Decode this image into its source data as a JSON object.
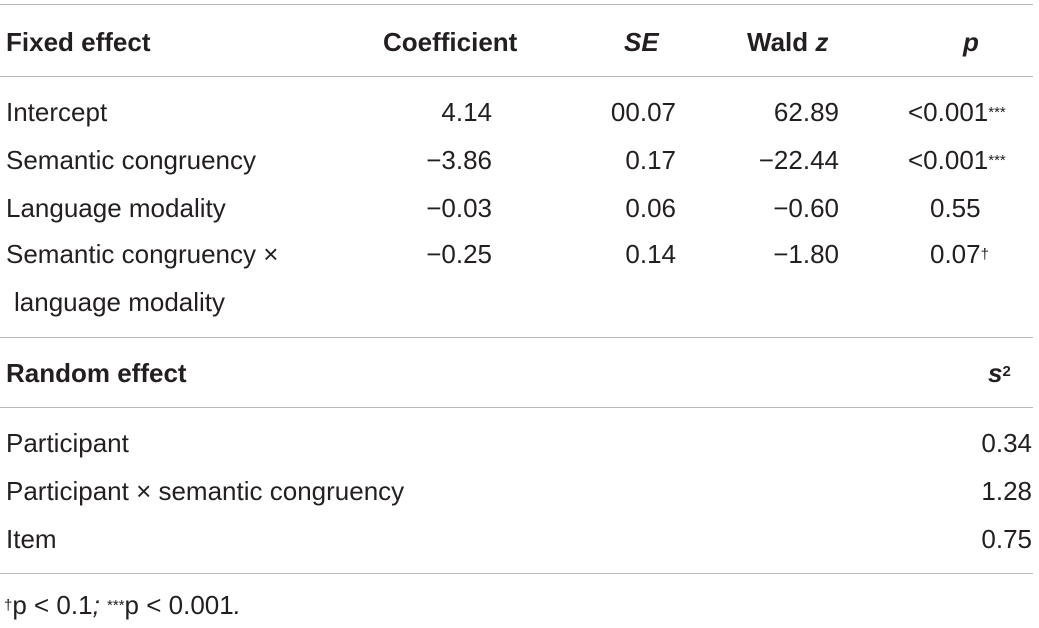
{
  "fixed_header": {
    "col1": "Fixed effect",
    "col2": "Coefficient",
    "col3": "SE",
    "col4_pre": "Wald ",
    "col4_var": "z",
    "col5": "p"
  },
  "fixed_rows": [
    {
      "label": "Intercept",
      "coef": "4.14",
      "se": "00.07",
      "z": "62.89",
      "p": "<0.001",
      "p_mark": "***"
    },
    {
      "label": "Semantic congruency",
      "coef": "−3.86",
      "se": "0.17",
      "z": "−22.44",
      "p": "<0.001",
      "p_mark": "***"
    },
    {
      "label": "Language modality",
      "coef": "−0.03",
      "se": "0.06",
      "z": "−0.60",
      "p": "0.55",
      "p_mark": ""
    },
    {
      "label": "Semantic congruency ×",
      "label2": "language modality",
      "coef": "−0.25",
      "se": "0.14",
      "z": "−1.80",
      "p": "0.07",
      "p_mark": "†"
    }
  ],
  "random_header": {
    "col1": "Random effect",
    "col2_base": "s",
    "col2_sup": "2"
  },
  "random_rows": [
    {
      "label": "Participant",
      "value": "0.34"
    },
    {
      "label": "Participant × semantic congruency",
      "value": "1.28"
    },
    {
      "label": "Item",
      "value": "0.75"
    }
  ],
  "footnote": {
    "dagger": "†",
    "part1": "p < 0.1",
    "sep": "; ",
    "stars": "***",
    "part2": "p < 0.001",
    "end": "."
  }
}
